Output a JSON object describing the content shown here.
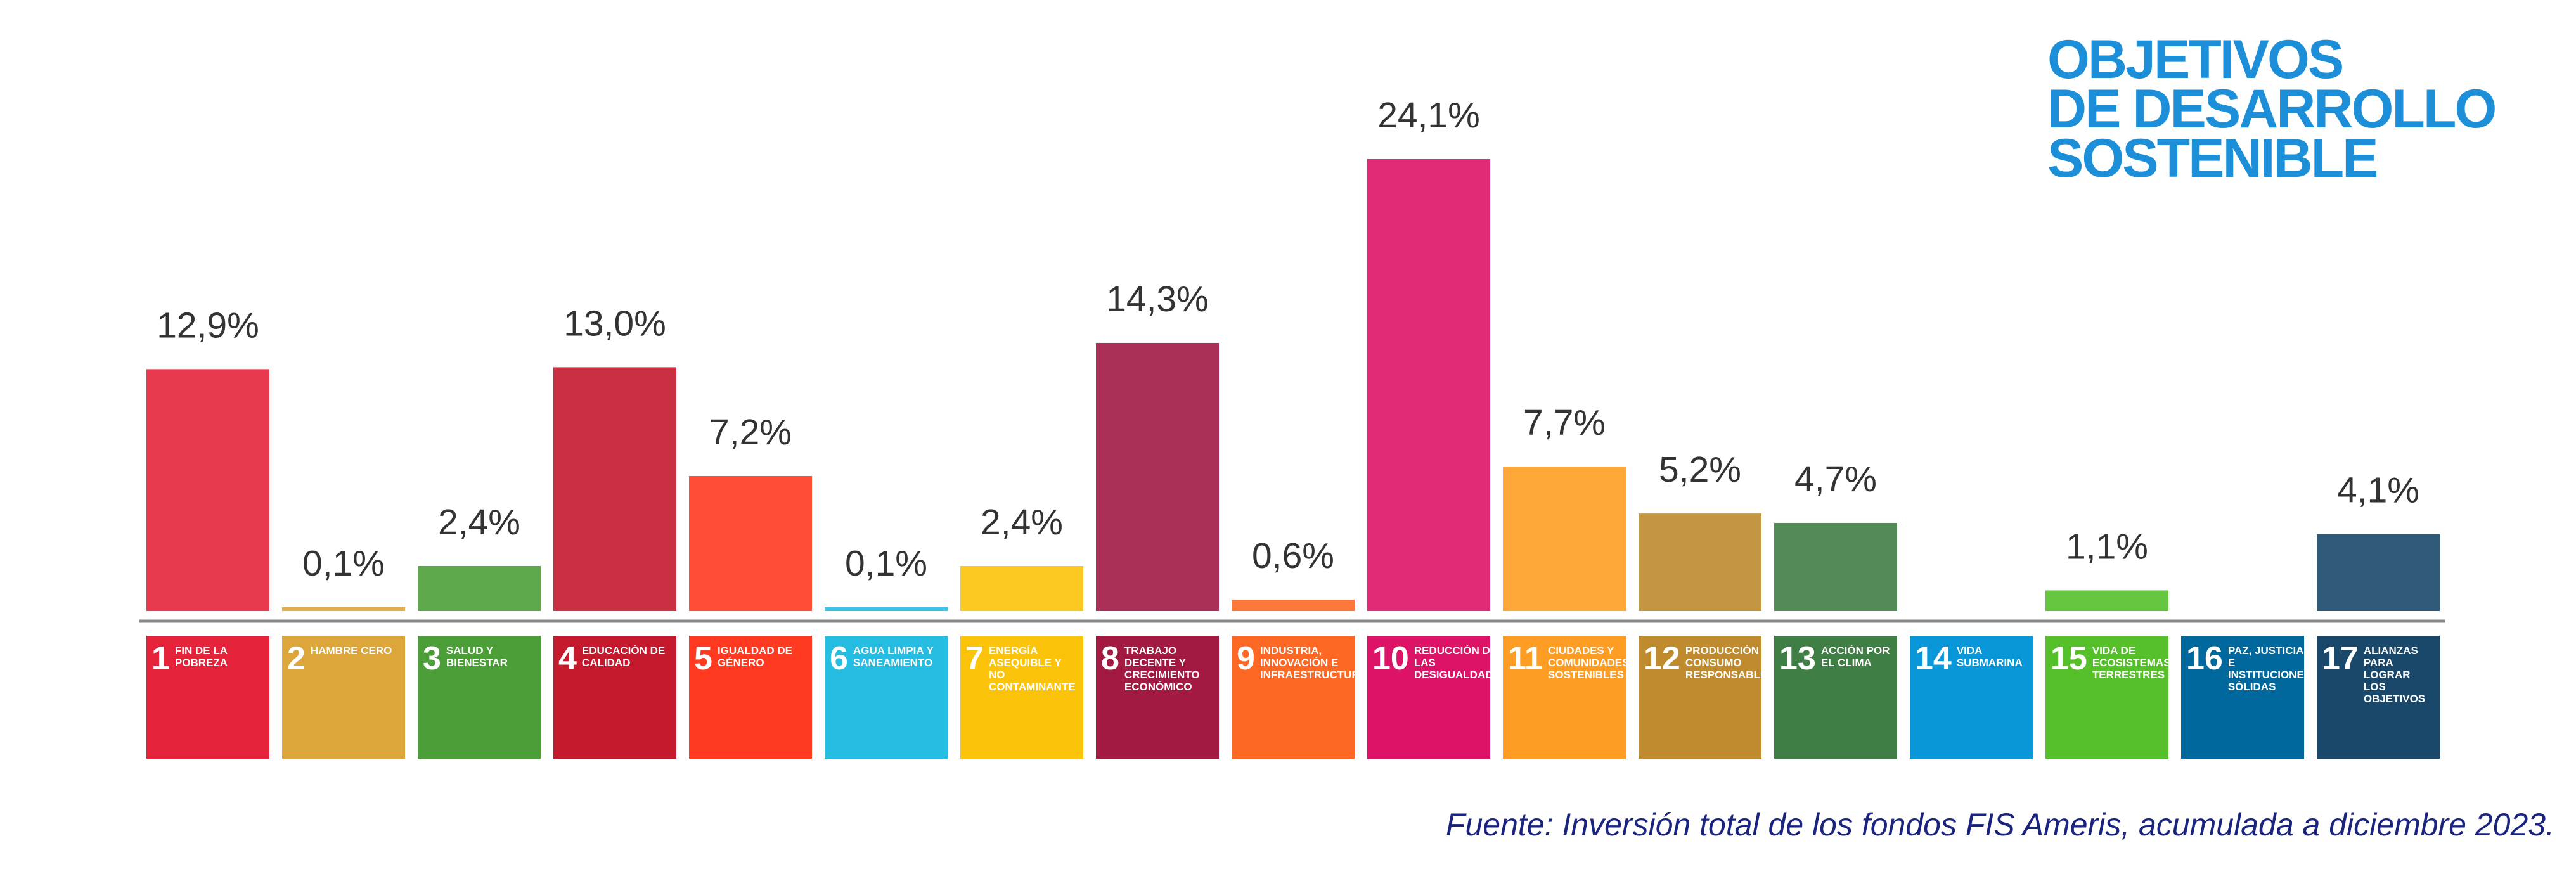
{
  "chart_data": {
    "type": "bar",
    "logo": [
      "OBJETIVOS",
      "DE DESARROLLO",
      "SOSTENIBLE"
    ],
    "goal_numbers": [
      1,
      2,
      3,
      4,
      5,
      6,
      7,
      8,
      9,
      10,
      11,
      12,
      13,
      14,
      15,
      16,
      17
    ],
    "categories": [
      "FIN DE LA POBREZA",
      "HAMBRE CERO",
      "SALUD Y BIENESTAR",
      "EDUCACIÓN DE CALIDAD",
      "IGUALDAD DE GÉNERO",
      "AGUA LIMPIA Y SANEAMIENTO",
      "ENERGÍA ASEQUIBLE Y NO CONTAMINANTE",
      "TRABAJO DECENTE Y CRECIMIENTO ECONÓMICO",
      "INDUSTRIA, INNOVACIÓN E INFRAESTRUCTURA",
      "REDUCCIÓN DE LAS DESIGUALDADES",
      "CIUDADES Y COMUNIDADES SOSTENIBLES",
      "PRODUCCIÓN Y CONSUMO RESPONSABLES",
      "ACCIÓN POR EL CLIMA",
      "VIDA SUBMARINA",
      "VIDA DE ECOSISTEMAS TERRESTRES",
      "PAZ, JUSTICIA E INSTITUCIONES SÓLIDAS",
      "ALIANZAS PARA LOGRAR LOS OBJETIVOS"
    ],
    "values": [
      12.9,
      0.1,
      2.4,
      13.0,
      7.2,
      0.1,
      2.4,
      14.3,
      0.6,
      24.1,
      7.7,
      5.2,
      4.7,
      null,
      1.1,
      null,
      4.1
    ],
    "value_labels": [
      "12,9%",
      "0,1%",
      "2,4%",
      "13,0%",
      "7,2%",
      "0,1%",
      "2,4%",
      "14,3%",
      "0,6%",
      "24,1%",
      "7,7%",
      "5,2%",
      "4,7%",
      null,
      "1,1%",
      null,
      "4,1%"
    ],
    "colors": [
      "#E5243B",
      "#DDA63A",
      "#4C9F38",
      "#C5192D",
      "#FF3A21",
      "#26BDE2",
      "#FCC30B",
      "#A21942",
      "#FD6925",
      "#DD1367",
      "#FD9D24",
      "#BF8B2E",
      "#3F7E44",
      "#0A97D9",
      "#56C02B",
      "#00689D",
      "#19486A"
    ],
    "source": "Fuente: Inversión total de los fondos FIS Ameris, acumulada a diciembre 2023."
  }
}
